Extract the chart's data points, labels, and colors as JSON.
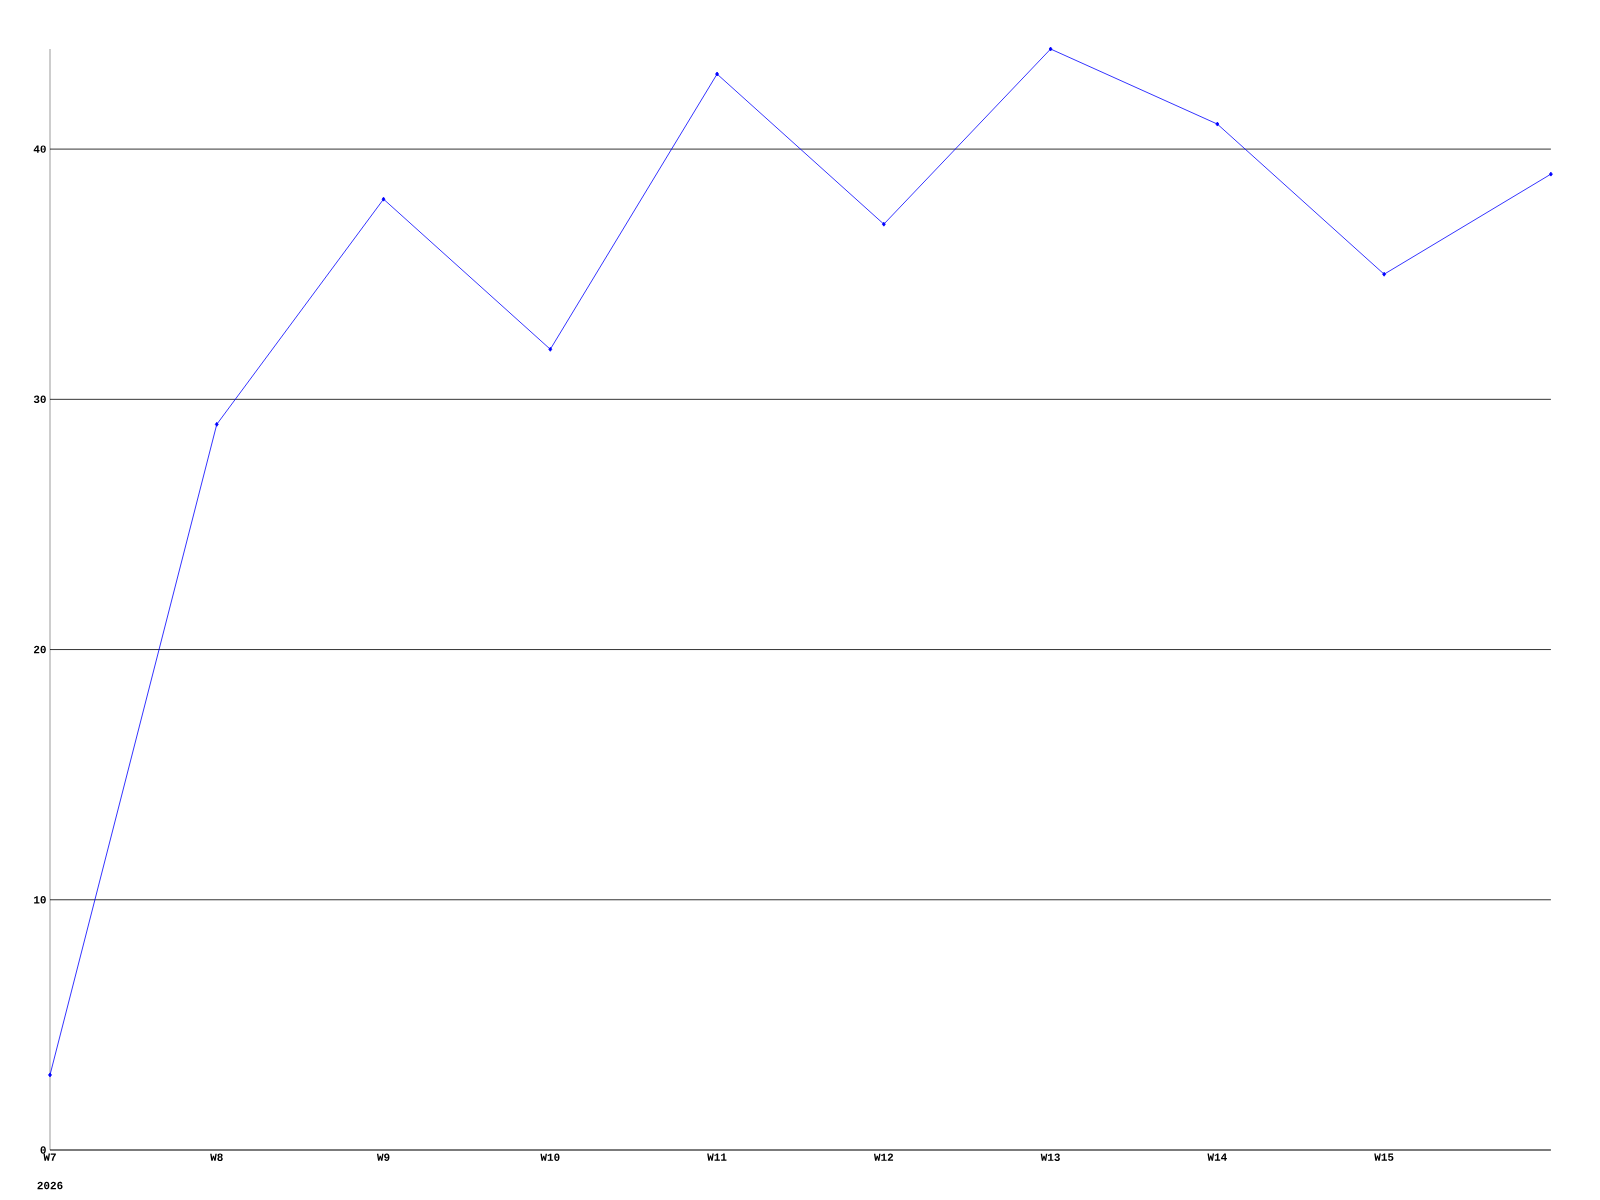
{
  "chart_data": {
    "type": "line",
    "categories": [
      "W7",
      "W8",
      "W9",
      "W10",
      "W11",
      "W12",
      "W13",
      "W14",
      "W15",
      null
    ],
    "values": [
      3,
      29,
      38,
      32,
      43,
      37,
      44,
      41,
      35,
      39
    ],
    "color": "#0000ff",
    "marker": "diamond",
    "line_style": "solid",
    "ylim": [
      0,
      44
    ],
    "yticks": [
      0,
      10,
      20,
      30,
      40
    ],
    "grid": "y",
    "annotations": [
      "2026"
    ]
  }
}
